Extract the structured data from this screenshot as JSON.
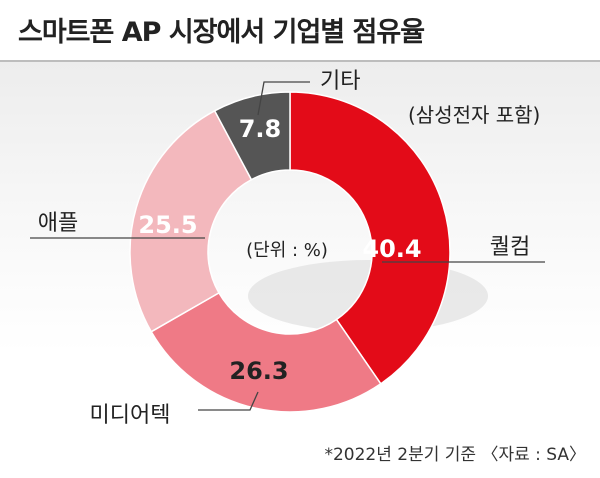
{
  "title": "스마트폰 AP 시장에서 기업별 점유율",
  "unit_note": "(단위 : %)",
  "footnote": "*2022년 2분기 기준 〈자료 : SA〉",
  "chart_data": {
    "type": "pie",
    "unit": "%",
    "slices": [
      {
        "label": "퀄컴",
        "value": 40.4,
        "value_label": "40.4",
        "color": "#e30b18"
      },
      {
        "label": "미디어텍",
        "value": 26.3,
        "value_label": "26.3",
        "color": "#ef7a86"
      },
      {
        "label": "애플",
        "value": 25.5,
        "value_label": "25.5",
        "color": "#f3b8bd"
      },
      {
        "label": "기타",
        "label_line2": "(삼성전자 포함)",
        "value": 7.8,
        "value_label": "7.8",
        "color": "#555555"
      }
    ]
  },
  "colors": {
    "background_top": "#ededed",
    "leader_line": "#444444"
  }
}
